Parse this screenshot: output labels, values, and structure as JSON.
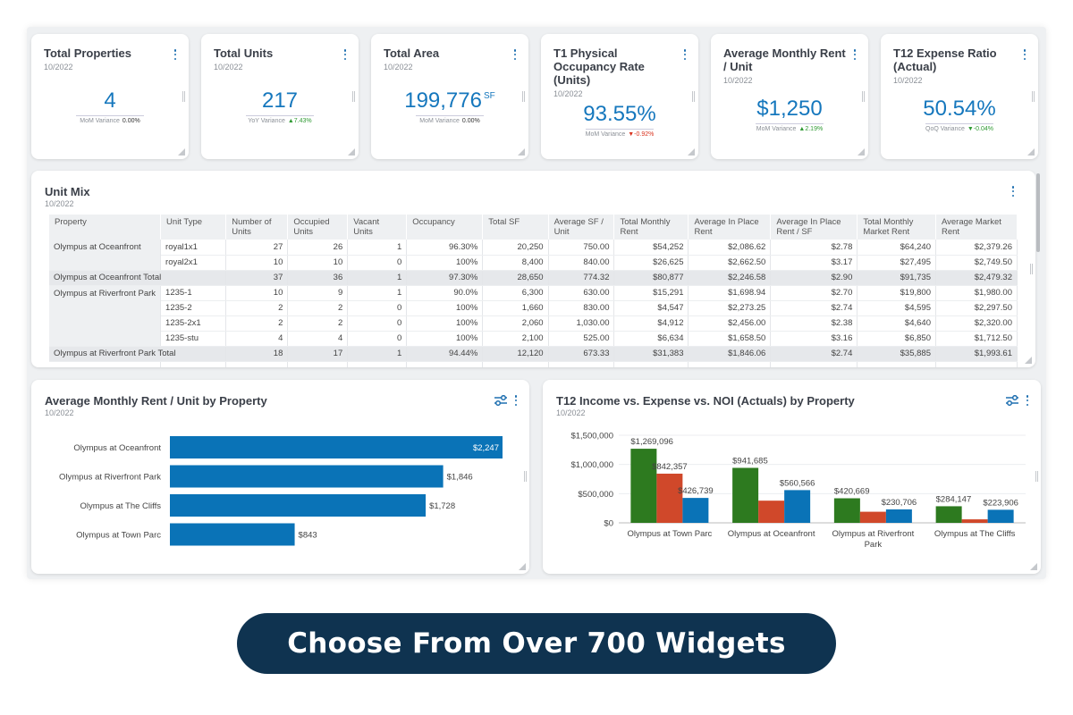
{
  "kpis": [
    {
      "title": "Total Properties",
      "date": "10/2022",
      "value": "4",
      "unit": "",
      "var_label": "MoM Variance",
      "var_value": "0.00%",
      "trend": "flat"
    },
    {
      "title": "Total Units",
      "date": "10/2022",
      "value": "217",
      "unit": "",
      "var_label": "YoY Variance",
      "var_value": "▲7.43%",
      "trend": "up"
    },
    {
      "title": "Total Area",
      "date": "10/2022",
      "value": "199,776",
      "unit": "SF",
      "var_label": "MoM Variance",
      "var_value": "0.00%",
      "trend": "flat"
    },
    {
      "title": "T1 Physical Occupancy Rate (Units)",
      "date": "10/2022",
      "value": "93.55%",
      "unit": "",
      "var_label": "MoM Variance",
      "var_value": "▼-0.92%",
      "trend": "down"
    },
    {
      "title": "Average Monthly Rent / Unit",
      "date": "10/2022",
      "value": "$1,250",
      "unit": "",
      "var_label": "MoM Variance",
      "var_value": "▲2.19%",
      "trend": "up"
    },
    {
      "title": "T12 Expense Ratio (Actual)",
      "date": "10/2022",
      "value": "50.54%",
      "unit": "",
      "var_label": "QoQ Variance",
      "var_value": "▼-0.04%",
      "trend": "down-green"
    }
  ],
  "unit_mix": {
    "title": "Unit Mix",
    "date": "10/2022",
    "headers": [
      "Property",
      "Unit Type",
      "Number of Units",
      "Occupied Units",
      "Vacant Units",
      "Occupancy",
      "Total SF",
      "Average SF / Unit",
      "Total Monthly Rent",
      "Average In Place Rent",
      "Average In Place Rent / SF",
      "Total Monthly Market Rent",
      "Average Market Rent"
    ],
    "groups": [
      {
        "property": "Olympus at Oceanfront",
        "rows": [
          [
            "royal1x1",
            "27",
            "26",
            "1",
            "96.30%",
            "20,250",
            "750.00",
            "$54,252",
            "$2,086.62",
            "$2.78",
            "$64,240",
            "$2,379.26"
          ],
          [
            "royal2x1",
            "10",
            "10",
            "0",
            "100%",
            "8,400",
            "840.00",
            "$26,625",
            "$2,662.50",
            "$3.17",
            "$27,495",
            "$2,749.50"
          ]
        ],
        "total": [
          "Olympus at Oceanfront Total",
          "37",
          "36",
          "1",
          "97.30%",
          "28,650",
          "774.32",
          "$80,877",
          "$2,246.58",
          "$2.90",
          "$91,735",
          "$2,479.32"
        ]
      },
      {
        "property": "Olympus at Riverfront Park",
        "rows": [
          [
            "1235-1",
            "10",
            "9",
            "1",
            "90.0%",
            "6,300",
            "630.00",
            "$15,291",
            "$1,698.94",
            "$2.70",
            "$19,800",
            "$1,980.00"
          ],
          [
            "1235-2",
            "2",
            "2",
            "0",
            "100%",
            "1,660",
            "830.00",
            "$4,547",
            "$2,273.25",
            "$2.74",
            "$4,595",
            "$2,297.50"
          ],
          [
            "1235-2x1",
            "2",
            "2",
            "0",
            "100%",
            "2,060",
            "1,030.00",
            "$4,912",
            "$2,456.00",
            "$2.38",
            "$4,640",
            "$2,320.00"
          ],
          [
            "1235-stu",
            "4",
            "4",
            "0",
            "100%",
            "2,100",
            "525.00",
            "$6,634",
            "$1,658.50",
            "$3.16",
            "$6,850",
            "$1,712.50"
          ]
        ],
        "total": [
          "Olympus at Riverfront Park Total",
          "18",
          "17",
          "1",
          "94.44%",
          "12,120",
          "673.33",
          "$31,383",
          "$1,846.06",
          "$2.74",
          "$35,885",
          "$1,993.61"
        ]
      }
    ]
  },
  "bar_chart": {
    "title": "Average Monthly Rent / Unit by Property",
    "date": "10/2022",
    "color": "#0a73b7",
    "chart_data": {
      "type": "bar",
      "orientation": "horizontal",
      "categories": [
        "Olympus at Oceanfront",
        "Olympus at Riverfront Park",
        "Olympus at The Cliffs",
        "Olympus at Town Parc"
      ],
      "values": [
        2247,
        1846,
        1728,
        843
      ],
      "labels": [
        "$2,247",
        "$1,846",
        "$1,728",
        "$843"
      ],
      "xlim": [
        0,
        2247
      ]
    }
  },
  "col_chart": {
    "title": "T12 Income vs. Expense vs. NOI (Actuals) by Property",
    "date": "10/2022",
    "chart_data": {
      "type": "bar",
      "categories": [
        "Olympus at Town Parc",
        "Olympus at Oceanfront",
        "Olympus at Riverfront Park",
        "Olympus at The Cliffs"
      ],
      "series": [
        {
          "name": "Income",
          "color": "#2d7a1f",
          "values": [
            1269096,
            941685,
            420669,
            284147
          ],
          "labels": [
            "$1,269,096",
            "$941,685",
            "$420,669",
            "$284,147"
          ]
        },
        {
          "name": "Expense",
          "color": "#d0482a",
          "values": [
            842357,
            380000,
            190000,
            60000
          ],
          "labels": [
            "$842,357",
            "",
            "",
            ""
          ]
        },
        {
          "name": "NOI",
          "color": "#0a73b7",
          "values": [
            426739,
            560566,
            230706,
            223906
          ],
          "labels": [
            "$426,739",
            "$560,566",
            "$230,706",
            "$223,906"
          ]
        }
      ],
      "ylim": [
        0,
        1500000
      ],
      "yticks": [
        0,
        500000,
        1000000,
        1500000
      ],
      "ytick_labels": [
        "$0",
        "$500,000",
        "$1,000,000",
        "$1,500,000"
      ]
    }
  },
  "cta": {
    "label": "Choose From Over 700 Widgets"
  }
}
